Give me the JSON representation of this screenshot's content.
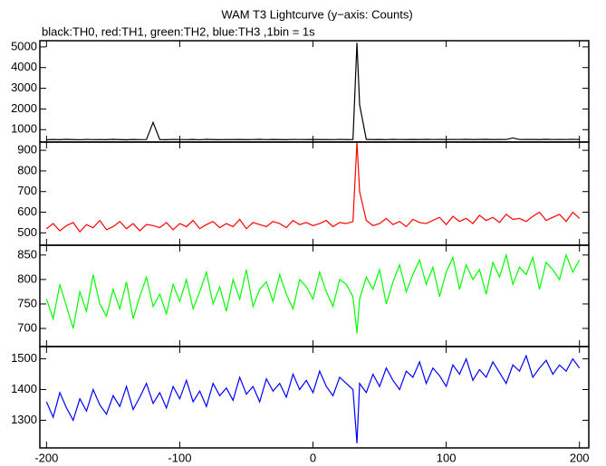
{
  "chart_data": [
    {
      "type": "line",
      "title": "WAM T3 Lightcurve (y−axis: Counts)",
      "subtitle": "black:TH0, red:TH1, green:TH2, blue:TH3 ,1bin = 1s",
      "xlim": [
        -205,
        207
      ],
      "xticks": [
        -200,
        -100,
        0,
        100,
        200
      ],
      "ylim": [
        400,
        5300
      ],
      "yticks": [
        1000,
        2000,
        3000,
        4000,
        5000
      ],
      "x": [
        -200,
        -195,
        -190,
        -185,
        -180,
        -175,
        -170,
        -165,
        -160,
        -155,
        -150,
        -145,
        -140,
        -135,
        -130,
        -125,
        -120,
        -115,
        -110,
        -105,
        -100,
        -95,
        -90,
        -85,
        -80,
        -75,
        -70,
        -65,
        -60,
        -55,
        -50,
        -45,
        -40,
        -35,
        -30,
        -25,
        -20,
        -15,
        -10,
        -5,
        0,
        5,
        10,
        15,
        20,
        25,
        30,
        33,
        35,
        40,
        45,
        50,
        55,
        60,
        65,
        70,
        75,
        80,
        85,
        90,
        95,
        100,
        105,
        110,
        115,
        120,
        125,
        130,
        135,
        140,
        145,
        150,
        155,
        160,
        165,
        170,
        175,
        180,
        185,
        190,
        195,
        200
      ],
      "series": [
        {
          "name": "TH0",
          "color": "#000000",
          "values": [
            510,
            525,
            515,
            530,
            520,
            512,
            528,
            518,
            522,
            515,
            530,
            520,
            510,
            526,
            518,
            524,
            1350,
            520,
            515,
            528,
            522,
            518,
            525,
            512,
            530,
            520,
            516,
            524,
            519,
            527,
            514,
            522,
            530,
            518,
            525,
            520,
            515,
            528,
            522,
            519,
            526,
            520,
            524,
            517,
            529,
            521,
            523,
            5200,
            2200,
            530,
            520,
            525,
            518,
            532,
            524,
            520,
            527,
            519,
            531,
            522,
            526,
            520,
            528,
            523,
            530,
            519,
            525,
            532,
            521,
            527,
            524,
            600,
            522,
            529,
            526,
            520,
            531,
            524,
            528,
            522,
            530,
            525
          ]
        }
      ]
    },
    {
      "type": "line",
      "xlim": [
        -205,
        207
      ],
      "xticks": [
        -200,
        -100,
        0,
        100,
        200
      ],
      "ylim": [
        440,
        940
      ],
      "yticks": [
        500,
        600,
        700,
        800,
        900
      ],
      "x": [
        -200,
        -195,
        -190,
        -185,
        -180,
        -175,
        -170,
        -165,
        -160,
        -155,
        -150,
        -145,
        -140,
        -135,
        -130,
        -125,
        -120,
        -115,
        -110,
        -105,
        -100,
        -95,
        -90,
        -85,
        -80,
        -75,
        -70,
        -65,
        -60,
        -55,
        -50,
        -45,
        -40,
        -35,
        -30,
        -25,
        -20,
        -15,
        -10,
        -5,
        0,
        5,
        10,
        15,
        20,
        25,
        30,
        33,
        35,
        40,
        45,
        50,
        55,
        60,
        65,
        70,
        75,
        80,
        85,
        90,
        95,
        100,
        105,
        110,
        115,
        120,
        125,
        130,
        135,
        140,
        145,
        150,
        155,
        160,
        165,
        170,
        175,
        180,
        185,
        190,
        195,
        200
      ],
      "series": [
        {
          "name": "TH1",
          "color": "#ff0000",
          "values": [
            520,
            545,
            510,
            535,
            550,
            505,
            540,
            525,
            560,
            515,
            530,
            555,
            520,
            545,
            510,
            540,
            535,
            525,
            550,
            515,
            545,
            530,
            560,
            520,
            540,
            555,
            525,
            545,
            530,
            565,
            520,
            550,
            540,
            530,
            555,
            545,
            525,
            560,
            540,
            550,
            535,
            545,
            560,
            530,
            550,
            545,
            555,
            940,
            700,
            560,
            535,
            545,
            570,
            540,
            555,
            530,
            565,
            550,
            545,
            560,
            575,
            540,
            580,
            555,
            570,
            545,
            585,
            560,
            575,
            550,
            590,
            565,
            570,
            555,
            580,
            600,
            560,
            575,
            590,
            555,
            600,
            570
          ]
        }
      ]
    },
    {
      "type": "line",
      "xlim": [
        -205,
        207
      ],
      "xticks": [
        -200,
        -100,
        0,
        100,
        200
      ],
      "ylim": [
        663,
        870
      ],
      "yticks": [
        700,
        750,
        800,
        850
      ],
      "x": [
        -200,
        -195,
        -190,
        -185,
        -180,
        -175,
        -170,
        -165,
        -160,
        -155,
        -150,
        -145,
        -140,
        -135,
        -130,
        -125,
        -120,
        -115,
        -110,
        -105,
        -100,
        -95,
        -90,
        -85,
        -80,
        -75,
        -70,
        -65,
        -60,
        -55,
        -50,
        -45,
        -40,
        -35,
        -30,
        -25,
        -20,
        -15,
        -10,
        -5,
        0,
        5,
        10,
        15,
        20,
        25,
        30,
        33,
        35,
        40,
        45,
        50,
        55,
        60,
        65,
        70,
        75,
        80,
        85,
        90,
        95,
        100,
        105,
        110,
        115,
        120,
        125,
        130,
        135,
        140,
        145,
        150,
        155,
        160,
        165,
        170,
        175,
        180,
        185,
        190,
        195,
        200
      ],
      "series": [
        {
          "name": "TH2",
          "color": "#00ff00",
          "values": [
            760,
            720,
            790,
            745,
            700,
            775,
            735,
            810,
            750,
            725,
            780,
            740,
            795,
            720,
            765,
            805,
            745,
            770,
            730,
            790,
            755,
            800,
            740,
            775,
            815,
            750,
            785,
            735,
            800,
            760,
            820,
            745,
            780,
            795,
            755,
            810,
            770,
            740,
            800,
            785,
            760,
            815,
            775,
            745,
            800,
            790,
            765,
            690,
            760,
            805,
            780,
            820,
            750,
            795,
            830,
            775,
            810,
            840,
            790,
            825,
            765,
            815,
            845,
            780,
            830,
            800,
            820,
            770,
            835,
            805,
            850,
            790,
            825,
            810,
            845,
            780,
            835,
            820,
            800,
            850,
            815,
            840
          ]
        }
      ]
    },
    {
      "type": "line",
      "xlim": [
        -205,
        207
      ],
      "xticks": [
        -200,
        -100,
        0,
        100,
        200
      ],
      "ylim": [
        1210,
        1540
      ],
      "yticks": [
        1300,
        1400,
        1500
      ],
      "x": [
        -200,
        -195,
        -190,
        -185,
        -180,
        -175,
        -170,
        -165,
        -160,
        -155,
        -150,
        -145,
        -140,
        -135,
        -130,
        -125,
        -120,
        -115,
        -110,
        -105,
        -100,
        -95,
        -90,
        -85,
        -80,
        -75,
        -70,
        -65,
        -60,
        -55,
        -50,
        -45,
        -40,
        -35,
        -30,
        -25,
        -20,
        -15,
        -10,
        -5,
        0,
        5,
        10,
        15,
        20,
        25,
        30,
        33,
        35,
        40,
        45,
        50,
        55,
        60,
        65,
        70,
        75,
        80,
        85,
        90,
        95,
        100,
        105,
        110,
        115,
        120,
        125,
        130,
        135,
        140,
        145,
        150,
        155,
        160,
        165,
        170,
        175,
        180,
        185,
        190,
        195,
        200
      ],
      "series": [
        {
          "name": "TH3",
          "color": "#0000ff",
          "values": [
            1360,
            1310,
            1390,
            1340,
            1300,
            1370,
            1330,
            1400,
            1350,
            1320,
            1380,
            1345,
            1410,
            1335,
            1375,
            1420,
            1355,
            1390,
            1340,
            1410,
            1370,
            1430,
            1360,
            1395,
            1345,
            1420,
            1380,
            1405,
            1365,
            1440,
            1385,
            1410,
            1360,
            1435,
            1395,
            1420,
            1375,
            1450,
            1400,
            1430,
            1390,
            1460,
            1410,
            1380,
            1440,
            1420,
            1400,
            1225,
            1420,
            1390,
            1450,
            1410,
            1470,
            1430,
            1400,
            1460,
            1440,
            1490,
            1420,
            1470,
            1445,
            1410,
            1480,
            1450,
            1500,
            1430,
            1465,
            1440,
            1490,
            1455,
            1420,
            1480,
            1460,
            1510,
            1440,
            1470,
            1495,
            1450,
            1480,
            1460,
            1500,
            1470
          ]
        }
      ]
    }
  ]
}
